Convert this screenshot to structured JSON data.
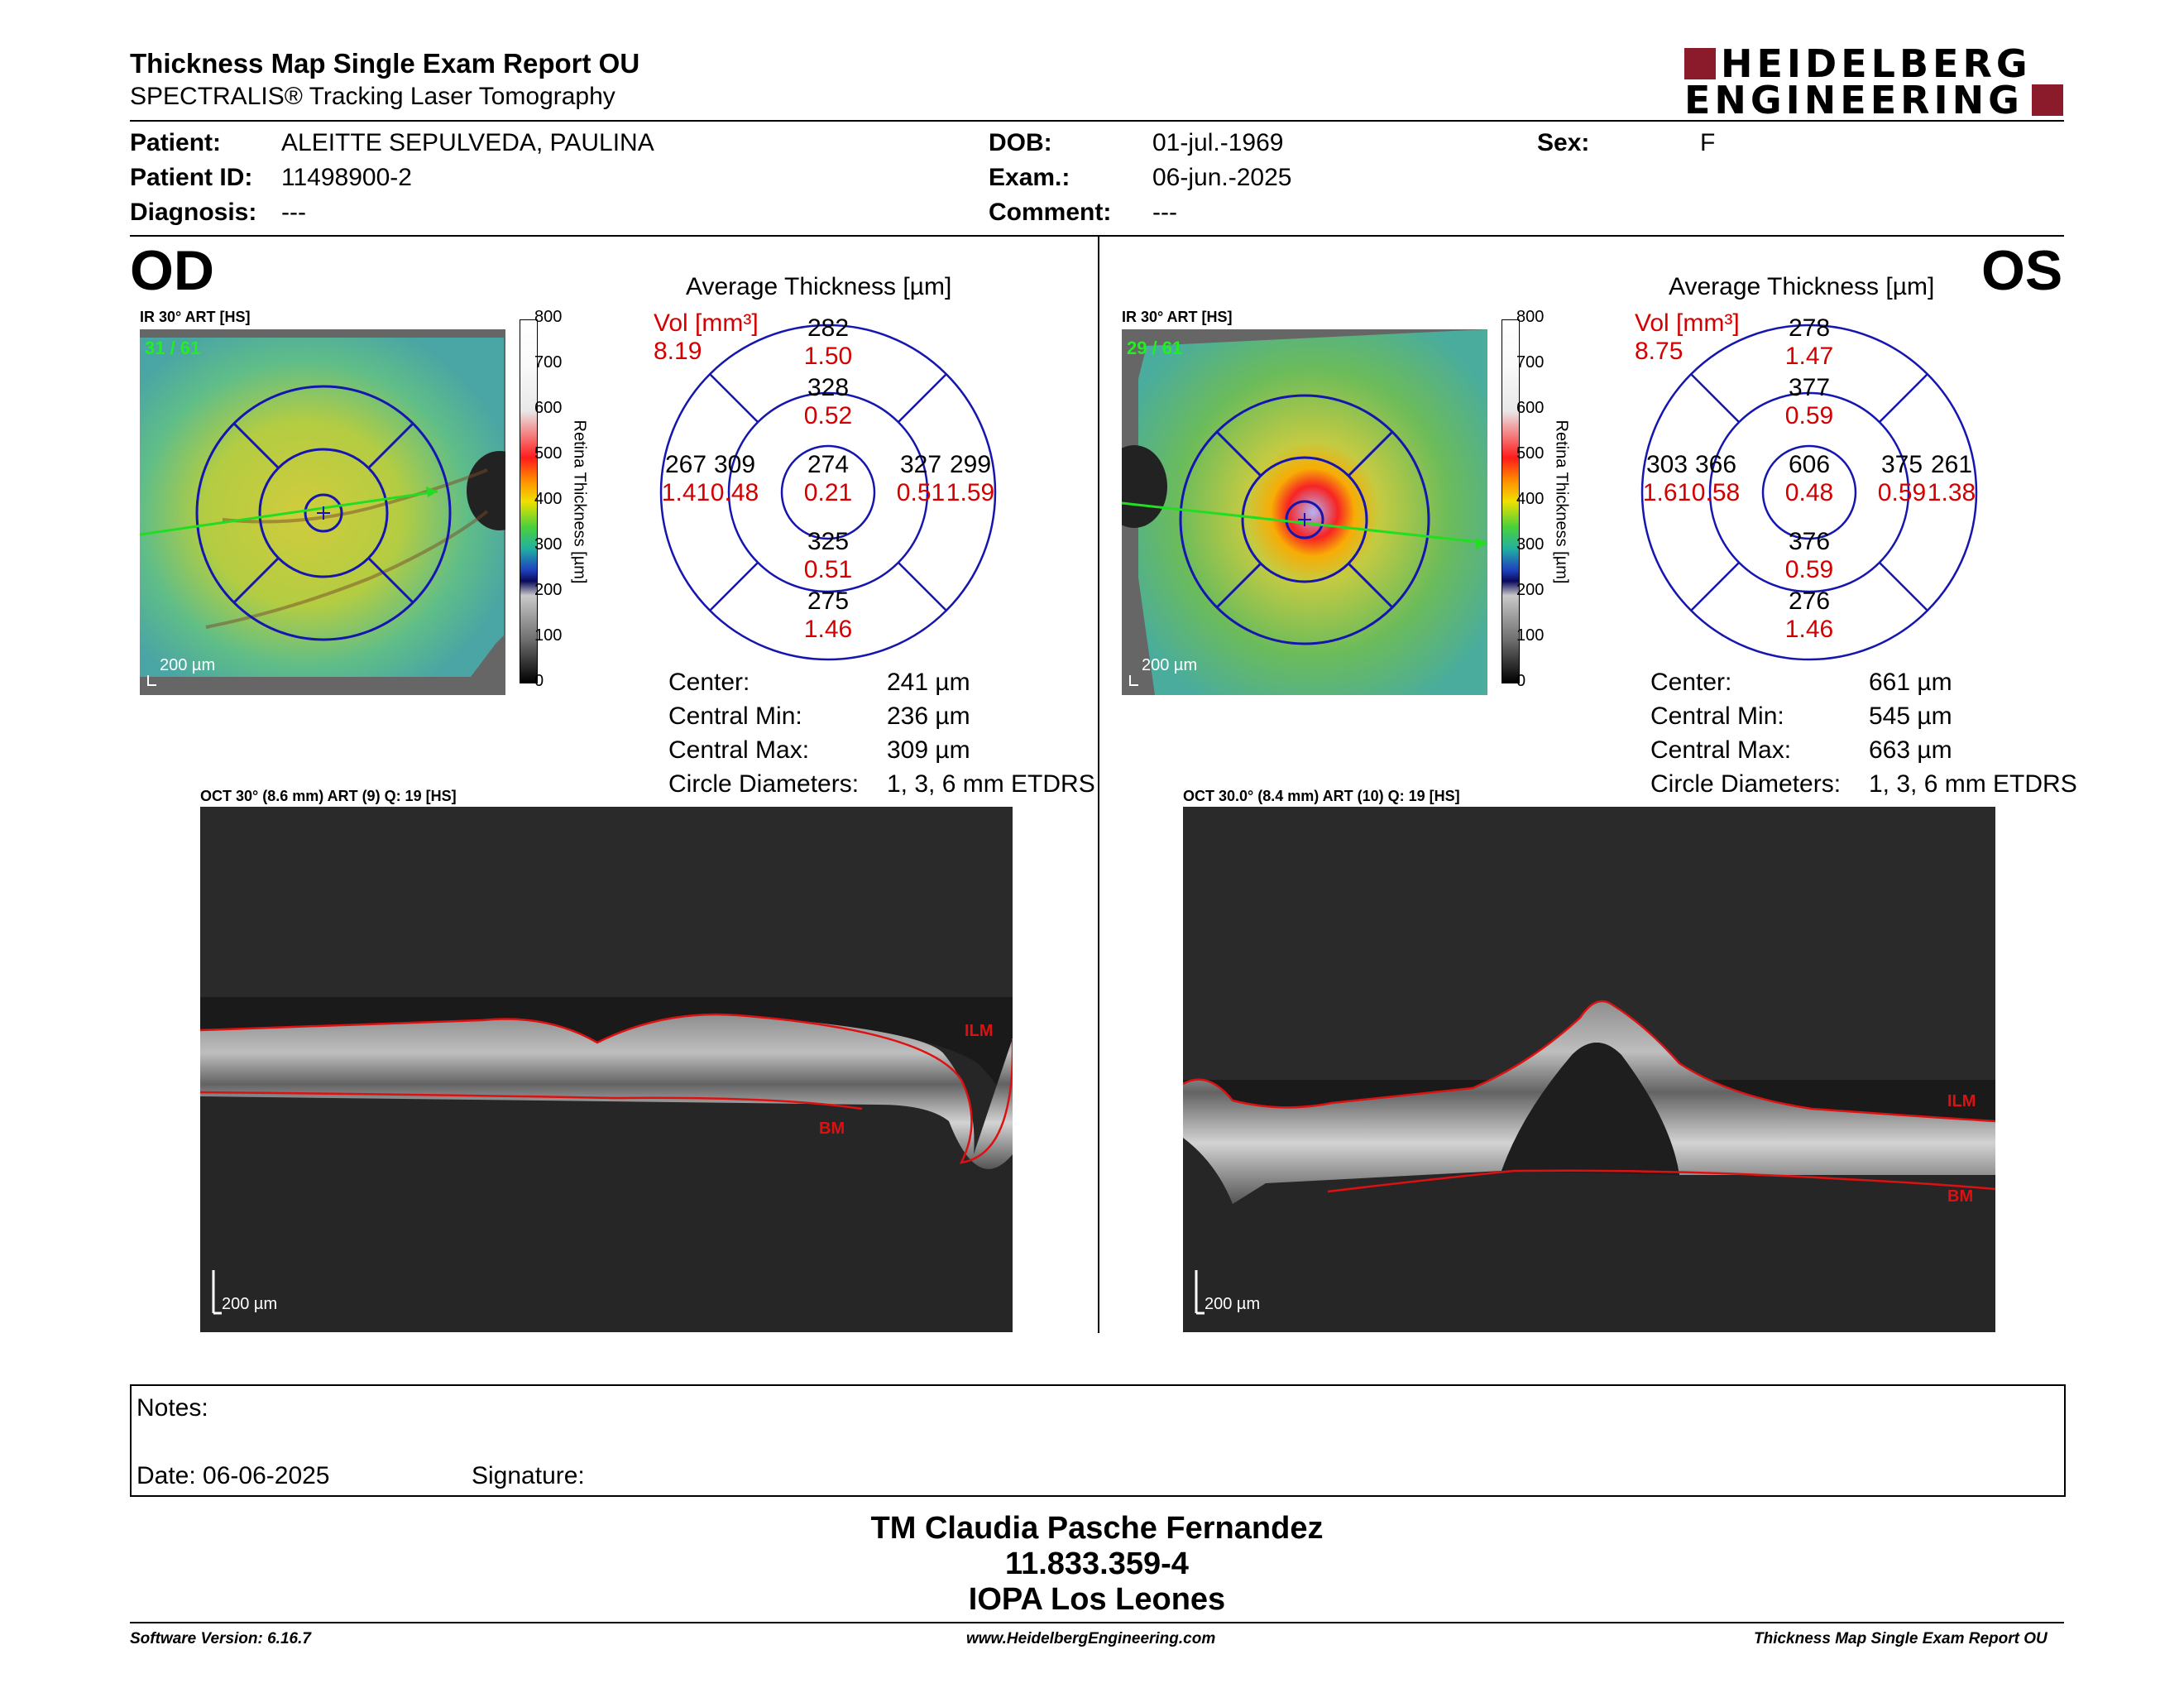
{
  "header": {
    "title": "Thickness Map Single Exam Report OU",
    "subtitle": "SPECTRALIS® Tracking Laser Tomography",
    "logo_line1": "HEIDELBERG",
    "logo_line2": "ENGINEERING",
    "brand_color": "#8b1a2b"
  },
  "patient": {
    "patient_label": "Patient:",
    "patient_value": "ALEITTE SEPULVEDA, PAULINA",
    "id_label": "Patient ID:",
    "id_value": "11498900-2",
    "diagnosis_label": "Diagnosis:",
    "diagnosis_value": "---",
    "dob_label": "DOB:",
    "dob_value": "01-jul.-1969",
    "exam_label": "Exam.:",
    "exam_value": "06-jun.-2025",
    "comment_label": "Comment:",
    "comment_value": "---",
    "sex_label": "Sex:",
    "sex_value": "F"
  },
  "od": {
    "eye": "OD",
    "ir_label": "IR 30° ART [HS]",
    "ir_count": "31 / 61",
    "scale_bar": "200 µm",
    "colorbar_ticks": [
      "800",
      "700",
      "600",
      "500",
      "400",
      "300",
      "200",
      "100",
      "0"
    ],
    "colorbar_title": "Retina  Thickness [µm]",
    "avg_title": "Average Thickness [µm]",
    "vol_label": "Vol [mm³]",
    "vol_value": "8.19",
    "sectors": {
      "outer_top": "282",
      "outer_top_vol": "1.50",
      "inner_top": "328",
      "inner_top_vol": "0.52",
      "outer_left": "267",
      "outer_left_vol": "1.41",
      "inner_left": "309",
      "inner_left_vol": "0.48",
      "center": "274",
      "center_vol": "0.21",
      "inner_right": "327",
      "inner_right_vol": "0.51",
      "outer_right": "299",
      "outer_right_vol": "1.59",
      "inner_bottom": "325",
      "inner_bottom_vol": "0.51",
      "outer_bottom": "275",
      "outer_bottom_vol": "1.46"
    },
    "stats": {
      "center_label": "Center:",
      "center_value": "241 µm",
      "min_label": "Central Min:",
      "min_value": "236 µm",
      "max_label": "Central Max:",
      "max_value": "309 µm",
      "diam_label": "Circle Diameters:",
      "diam_value": "1, 3, 6 mm ETDRS"
    },
    "oct_label": "OCT 30° (8.6 mm) ART (9) Q: 19 [HS]",
    "ilm": "ILM",
    "bm": "BM",
    "oct_scale": "200 µm"
  },
  "os": {
    "eye": "OS",
    "ir_label": "IR 30° ART [HS]",
    "ir_count": "29 / 61",
    "scale_bar": "200 µm",
    "colorbar_ticks": [
      "800",
      "700",
      "600",
      "500",
      "400",
      "300",
      "200",
      "100",
      "0"
    ],
    "colorbar_title": "Retina  Thickness [µm]",
    "avg_title": "Average Thickness [µm]",
    "vol_label": "Vol [mm³]",
    "vol_value": "8.75",
    "sectors": {
      "outer_top": "278",
      "outer_top_vol": "1.47",
      "inner_top": "377",
      "inner_top_vol": "0.59",
      "outer_left": "303",
      "outer_left_vol": "1.61",
      "inner_left": "366",
      "inner_left_vol": "0.58",
      "center": "606",
      "center_vol": "0.48",
      "inner_right": "375",
      "inner_right_vol": "0.59",
      "outer_right": "261",
      "outer_right_vol": "1.38",
      "inner_bottom": "376",
      "inner_bottom_vol": "0.59",
      "outer_bottom": "276",
      "outer_bottom_vol": "1.46"
    },
    "stats": {
      "center_label": "Center:",
      "center_value": "661 µm",
      "min_label": "Central Min:",
      "min_value": "545 µm",
      "max_label": "Central Max:",
      "max_value": "663 µm",
      "diam_label": "Circle Diameters:",
      "diam_value": "1, 3, 6 mm ETDRS"
    },
    "oct_label": "OCT 30.0° (8.4 mm) ART (10) Q: 19 [HS]",
    "ilm": "ILM",
    "bm": "BM",
    "oct_scale": "200 µm"
  },
  "notes": {
    "notes_label": "Notes:",
    "date_label": "Date: 06-06-2025",
    "signature_label": "Signature:"
  },
  "signature": {
    "name": "TM Claudia Pasche Fernandez",
    "id": "11.833.359-4",
    "place": "IOPA Los Leones"
  },
  "footer": {
    "software": "Software Version: 6.16.7",
    "website": "www.HeidelbergEngineering.com",
    "report": "Thickness Map Single Exam Report OU"
  }
}
